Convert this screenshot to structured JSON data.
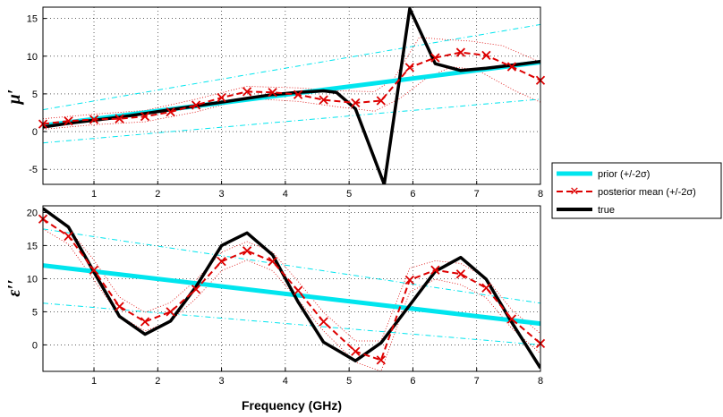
{
  "chart_data": [
    {
      "type": "line",
      "ylabel": "μ′",
      "xlabel": "",
      "xlim": [
        0.2,
        8
      ],
      "ylim": [
        -7,
        16.5
      ],
      "xticks": [
        "1",
        "2",
        "3",
        "4",
        "5",
        "6",
        "7",
        "8"
      ],
      "yticks": [
        "-5",
        "0",
        "5",
        "10",
        "15"
      ],
      "grid": true,
      "series": [
        {
          "name": "prior",
          "role": "prior",
          "color": "#00e5ee",
          "x": [
            0.2,
            8
          ],
          "y": [
            0.8,
            9.2
          ]
        },
        {
          "name": "prior +2σ",
          "role": "prior-band",
          "color": "#00e5ee",
          "x": [
            0.2,
            8
          ],
          "y": [
            2.9,
            14.2
          ]
        },
        {
          "name": "prior -2σ",
          "role": "prior-band",
          "color": "#00e5ee",
          "x": [
            0.2,
            8
          ],
          "y": [
            -1.5,
            4.3
          ]
        },
        {
          "name": "true",
          "role": "true",
          "color": "#000000",
          "x": [
            0.2,
            0.6,
            1.0,
            1.4,
            1.8,
            2.2,
            2.6,
            3.0,
            3.4,
            3.8,
            4.2,
            4.6,
            4.8,
            5.1,
            5.55,
            5.95,
            6.35,
            6.75,
            7.15,
            7.55,
            8.0
          ],
          "y": [
            0.6,
            1.1,
            1.5,
            1.9,
            2.4,
            2.9,
            3.4,
            3.9,
            4.4,
            4.9,
            5.2,
            5.4,
            5.2,
            3.0,
            -7.0,
            16.3,
            9.0,
            8.1,
            8.4,
            8.8,
            9.3
          ]
        },
        {
          "name": "posterior mean",
          "role": "posterior",
          "color": "#dd0000",
          "x": [
            0.2,
            0.6,
            1.0,
            1.4,
            1.8,
            2.2,
            2.6,
            3.0,
            3.4,
            3.8,
            4.2,
            4.6,
            5.1,
            5.5,
            5.95,
            6.35,
            6.75,
            7.15,
            7.55,
            8.0
          ],
          "y": [
            1.0,
            1.4,
            1.6,
            1.7,
            2.0,
            2.6,
            3.5,
            4.5,
            5.3,
            5.2,
            4.9,
            4.2,
            3.8,
            4.1,
            8.5,
            9.8,
            10.5,
            10.1,
            8.6,
            6.8
          ]
        },
        {
          "name": "posterior +2σ",
          "role": "posterior-band",
          "color": "#dd0000",
          "x": [
            0.2,
            1.0,
            1.8,
            2.6,
            3.4,
            4.2,
            4.8,
            5.4,
            5.7,
            6.1,
            6.5,
            6.9,
            7.4,
            8.0
          ],
          "y": [
            1.7,
            2.3,
            2.8,
            4.3,
            6.0,
            5.8,
            5.4,
            5.3,
            7.0,
            12.5,
            12.2,
            12.0,
            11.4,
            9.2
          ]
        },
        {
          "name": "posterior -2σ",
          "role": "posterior-band",
          "color": "#dd0000",
          "x": [
            0.2,
            1.0,
            1.8,
            2.6,
            3.4,
            4.2,
            4.8,
            5.4,
            5.8,
            6.2,
            6.6,
            7.0,
            7.6,
            8.0
          ],
          "y": [
            0.3,
            0.9,
            1.3,
            2.6,
            4.4,
            4.0,
            3.3,
            2.7,
            4.4,
            7.0,
            8.6,
            8.2,
            5.4,
            3.9
          ]
        }
      ]
    },
    {
      "type": "line",
      "ylabel": "ε′′",
      "xlabel": "Frequency (GHz)",
      "xlim": [
        0.2,
        8
      ],
      "ylim": [
        -4,
        21
      ],
      "xticks": [
        "1",
        "2",
        "3",
        "4",
        "5",
        "6",
        "7",
        "8"
      ],
      "yticks": [
        "0",
        "5",
        "10",
        "15",
        "20"
      ],
      "grid": true,
      "series": [
        {
          "name": "prior",
          "role": "prior",
          "color": "#00e5ee",
          "x": [
            0.2,
            8
          ],
          "y": [
            12.0,
            3.2
          ]
        },
        {
          "name": "prior +2σ",
          "role": "prior-band",
          "color": "#00e5ee",
          "x": [
            0.2,
            8
          ],
          "y": [
            17.5,
            6.3
          ]
        },
        {
          "name": "prior -2σ",
          "role": "prior-band",
          "color": "#00e5ee",
          "x": [
            0.2,
            8
          ],
          "y": [
            6.3,
            0.0
          ]
        },
        {
          "name": "true",
          "role": "true",
          "color": "#000000",
          "x": [
            0.2,
            0.6,
            1.0,
            1.4,
            1.8,
            2.2,
            2.6,
            3.0,
            3.4,
            3.8,
            4.2,
            4.6,
            5.1,
            5.5,
            5.95,
            6.35,
            6.75,
            7.15,
            7.55,
            8.0
          ],
          "y": [
            20.6,
            17.8,
            11.0,
            4.3,
            1.6,
            3.6,
            8.8,
            15.0,
            16.9,
            13.6,
            6.5,
            0.4,
            -2.4,
            0.3,
            6.0,
            11.1,
            13.2,
            9.9,
            3.4,
            -3.5
          ]
        },
        {
          "name": "posterior mean",
          "role": "posterior",
          "color": "#dd0000",
          "x": [
            0.2,
            0.6,
            1.0,
            1.4,
            1.8,
            2.2,
            2.6,
            3.0,
            3.4,
            3.8,
            4.2,
            4.6,
            5.1,
            5.5,
            5.95,
            6.35,
            6.75,
            7.15,
            7.55,
            8.0
          ],
          "y": [
            19.0,
            16.4,
            11.3,
            5.8,
            3.5,
            5.0,
            8.4,
            12.6,
            14.2,
            12.6,
            8.2,
            3.5,
            -1.0,
            -2.3,
            9.8,
            11.3,
            10.7,
            8.6,
            3.9,
            0.2
          ]
        },
        {
          "name": "posterior +2σ",
          "role": "posterior-band",
          "color": "#dd0000",
          "x": [
            0.2,
            0.6,
            1.0,
            1.4,
            1.8,
            2.2,
            2.6,
            3.0,
            3.4,
            3.8,
            4.2,
            4.6,
            5.1,
            5.5,
            5.95,
            6.35,
            6.75,
            7.15,
            7.55,
            8.0
          ],
          "y": [
            20.5,
            17.6,
            12.8,
            7.2,
            4.9,
            6.4,
            9.8,
            14.0,
            15.6,
            14.0,
            9.6,
            4.9,
            0.6,
            0.6,
            11.6,
            12.7,
            12.3,
            10.1,
            5.3,
            1.7
          ]
        },
        {
          "name": "posterior -2σ",
          "role": "posterior-band",
          "color": "#dd0000",
          "x": [
            0.2,
            0.6,
            1.0,
            1.4,
            1.8,
            2.2,
            2.6,
            3.0,
            3.4,
            3.8,
            4.2,
            4.6,
            5.1,
            5.5,
            5.95,
            6.35,
            6.75,
            7.15,
            7.55,
            8.0
          ],
          "y": [
            17.5,
            15.2,
            9.8,
            4.4,
            2.1,
            3.6,
            7.0,
            11.2,
            12.8,
            11.2,
            6.8,
            2.1,
            -2.6,
            -4.0,
            8.0,
            9.9,
            9.1,
            7.1,
            2.5,
            -1.3
          ]
        }
      ]
    }
  ],
  "legend": {
    "placement": "right",
    "entries": [
      {
        "label": "prior (+/-2σ)",
        "color": "#00e5ee",
        "style": "prior"
      },
      {
        "label": "posterior mean (+/-2σ)",
        "color": "#dd0000",
        "style": "posterior"
      },
      {
        "label": "true",
        "color": "#000000",
        "style": "true"
      }
    ]
  }
}
